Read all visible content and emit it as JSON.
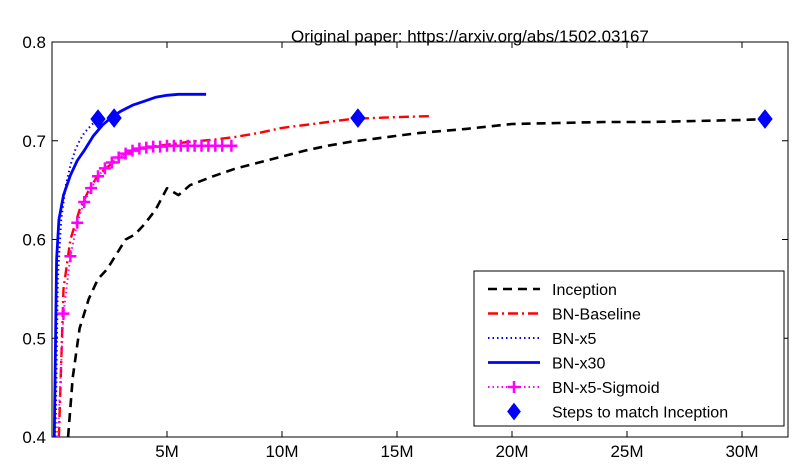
{
  "chart_data": {
    "type": "line",
    "annotation": "Original paper: https://arxiv.org/abs/1502.03167",
    "xlim": [
      0,
      32000000
    ],
    "ylim": [
      0.4,
      0.8
    ],
    "x_ticks": [
      {
        "value": 5000000,
        "label": "5M"
      },
      {
        "value": 10000000,
        "label": "10M"
      },
      {
        "value": 15000000,
        "label": "15M"
      },
      {
        "value": 20000000,
        "label": "20M"
      },
      {
        "value": 25000000,
        "label": "25M"
      },
      {
        "value": 30000000,
        "label": "30M"
      }
    ],
    "y_ticks": [
      {
        "value": 0.4,
        "label": "0.4"
      },
      {
        "value": 0.5,
        "label": "0.5"
      },
      {
        "value": 0.6,
        "label": "0.6"
      },
      {
        "value": 0.7,
        "label": "0.7"
      },
      {
        "value": 0.8,
        "label": "0.8"
      }
    ],
    "grid": false,
    "legend_position": "bottom-right",
    "series": [
      {
        "name": "Inception",
        "color": "#000000",
        "style": "dashed",
        "x": [
          700000,
          900000,
          1200000,
          1600000,
          2000000,
          2400000,
          2800000,
          3200000,
          3600000,
          4000000,
          4500000,
          5000000,
          5500000,
          6000000,
          7000000,
          8000000,
          9000000,
          10000000,
          11000000,
          12000000,
          13000000,
          14000000,
          15000000,
          16000000,
          17000000,
          18000000,
          20000000,
          22000000,
          24000000,
          26000000,
          28000000,
          30000000,
          31000000
        ],
        "y": [
          0.4,
          0.46,
          0.51,
          0.54,
          0.56,
          0.57,
          0.585,
          0.6,
          0.605,
          0.615,
          0.63,
          0.652,
          0.645,
          0.655,
          0.664,
          0.672,
          0.678,
          0.684,
          0.69,
          0.695,
          0.699,
          0.702,
          0.705,
          0.708,
          0.71,
          0.712,
          0.717,
          0.718,
          0.719,
          0.719,
          0.72,
          0.721,
          0.722
        ]
      },
      {
        "name": "BN-Baseline",
        "color": "#ff0000",
        "style": "dashdot",
        "x": [
          300000,
          500000,
          800000,
          1200000,
          1600000,
          2000000,
          2500000,
          3000000,
          3500000,
          4000000,
          5000000,
          6000000,
          7000000,
          8000000,
          9000000,
          10000000,
          11000000,
          12000000,
          13000000,
          14000000,
          15000000,
          16500000
        ],
        "y": [
          0.4,
          0.55,
          0.6,
          0.63,
          0.65,
          0.665,
          0.675,
          0.685,
          0.69,
          0.693,
          0.696,
          0.699,
          0.701,
          0.704,
          0.708,
          0.713,
          0.716,
          0.719,
          0.722,
          0.723,
          0.724,
          0.725
        ]
      },
      {
        "name": "BN-x5",
        "color": "#0000ff",
        "style": "dotted",
        "x": [
          150000,
          250000,
          400000,
          600000,
          800000,
          1000000,
          1200000,
          1400000,
          1600000,
          1800000,
          2100000
        ],
        "y": [
          0.4,
          0.56,
          0.62,
          0.655,
          0.675,
          0.69,
          0.7,
          0.708,
          0.713,
          0.718,
          0.723
        ]
      },
      {
        "name": "BN-x30",
        "color": "#0000ff",
        "style": "solid",
        "x": [
          100000,
          200000,
          300000,
          500000,
          800000,
          1100000,
          1400000,
          1800000,
          2200000,
          2600000,
          3000000,
          3500000,
          4000000,
          4500000,
          5000000,
          5500000,
          6000000,
          6700000
        ],
        "y": [
          0.4,
          0.58,
          0.62,
          0.645,
          0.665,
          0.68,
          0.69,
          0.705,
          0.716,
          0.724,
          0.73,
          0.736,
          0.74,
          0.744,
          0.746,
          0.747,
          0.747,
          0.747
        ]
      },
      {
        "name": "BN-x5-Sigmoid",
        "color": "#ff00ff",
        "style": "dotted-plus",
        "x": [
          250000,
          500000,
          800000,
          1100000,
          1400000,
          1700000,
          2000000,
          2300000,
          2600000,
          2900000,
          3200000,
          3500000,
          3800000,
          4100000,
          4400000,
          4700000,
          5000000,
          5300000,
          5600000,
          5900000,
          6200000,
          6500000,
          6800000,
          7100000,
          7400000,
          7800000
        ],
        "y": [
          0.4,
          0.525,
          0.583,
          0.617,
          0.638,
          0.652,
          0.664,
          0.672,
          0.678,
          0.683,
          0.687,
          0.69,
          0.692,
          0.693,
          0.694,
          0.694,
          0.695,
          0.695,
          0.695,
          0.695,
          0.695,
          0.695,
          0.695,
          0.695,
          0.695,
          0.695
        ]
      },
      {
        "name": "Steps to match Inception",
        "color": "#0000ff",
        "style": "diamond-markers",
        "x": [
          2000000,
          2700000,
          13300000,
          31000000
        ],
        "y": [
          0.722,
          0.723,
          0.723,
          0.722
        ]
      }
    ]
  }
}
